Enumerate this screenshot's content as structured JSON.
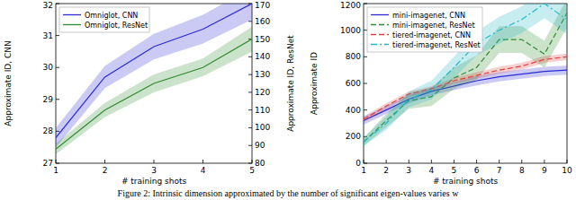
{
  "chart_data": [
    {
      "type": "line",
      "x_label": "# training shots",
      "y_label": "Approximate ID, CNN",
      "y2_label": "Approximate ID, ResNet",
      "x": [
        1,
        2,
        3,
        4,
        5
      ],
      "xlim": [
        1,
        5
      ],
      "xticks": [
        1,
        2,
        3,
        4,
        5
      ],
      "ylim": [
        27,
        32
      ],
      "yticks": [
        27,
        28,
        29,
        30,
        31,
        32
      ],
      "y2lim": [
        80,
        170
      ],
      "y2ticks": [
        80,
        90,
        100,
        110,
        120,
        130,
        140,
        150,
        160,
        170
      ],
      "grid": false,
      "legend": "upper left",
      "series": [
        {
          "name": "Omniglot, CNN",
          "color": "#2b2bd6",
          "line_style": "solid",
          "values": [
            27.8,
            29.7,
            30.65,
            31.2,
            32.0
          ],
          "error": [
            0.3,
            0.35,
            0.4,
            0.45,
            0.5
          ]
        },
        {
          "name": "Omniglot, ResNet",
          "color": "#2e8b2e",
          "line_style": "solid",
          "axis": "y2",
          "values": [
            88,
            110,
            125,
            134,
            150
          ],
          "error": [
            3,
            4,
            5,
            5,
            7
          ]
        }
      ]
    },
    {
      "type": "line",
      "x_label": "# training shots",
      "y_label": "Approximate ID",
      "x": [
        1,
        2,
        3,
        4,
        5,
        6,
        7,
        8,
        9,
        10
      ],
      "xlim": [
        1,
        10
      ],
      "xticks": [
        1,
        2,
        3,
        4,
        5,
        6,
        7,
        8,
        9,
        10
      ],
      "ylim": [
        0,
        1200
      ],
      "yticks": [
        0,
        200,
        400,
        600,
        800,
        1000,
        1200
      ],
      "grid": false,
      "legend": "upper left",
      "series": [
        {
          "name": "mini-imagenet, CNN",
          "color": "#2b2bd6",
          "line_style": "solid",
          "values": [
            320,
            400,
            480,
            540,
            580,
            620,
            650,
            670,
            690,
            700
          ],
          "error": [
            30,
            30,
            30,
            30,
            30,
            35,
            35,
            35,
            35,
            35
          ]
        },
        {
          "name": "mini-imagenet, ResNet",
          "color": "#2e8b2e",
          "line_style": "dashed",
          "values": [
            160,
            320,
            470,
            500,
            640,
            720,
            930,
            930,
            820,
            1130
          ],
          "error": [
            30,
            50,
            60,
            70,
            80,
            90,
            100,
            100,
            100,
            110
          ]
        },
        {
          "name": "tiered-imagenet, CNN",
          "color": "#e04040",
          "line_style": "dashed",
          "values": [
            330,
            430,
            520,
            560,
            620,
            660,
            700,
            730,
            780,
            800
          ],
          "error": [
            20,
            20,
            20,
            20,
            20,
            25,
            25,
            25,
            25,
            25
          ]
        },
        {
          "name": "tiered-imagenet, ResNet",
          "color": "#22b8c8",
          "line_style": "dashdot",
          "values": [
            160,
            300,
            480,
            550,
            720,
            900,
            1000,
            1080,
            1200,
            1080
          ],
          "error": [
            30,
            50,
            60,
            70,
            80,
            90,
            100,
            100,
            110,
            110
          ]
        }
      ]
    }
  ],
  "caption": "Figure 2: Intrinsic dimension approximated by the number of significant eigen-values varies w"
}
